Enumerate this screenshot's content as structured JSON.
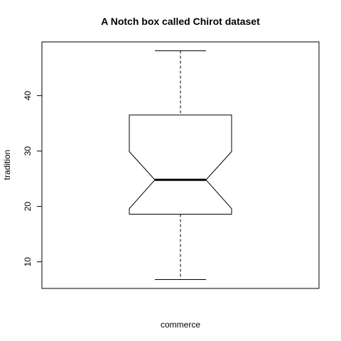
{
  "chart_data": {
    "type": "boxplot",
    "notched": true,
    "title": "A Notch box called Chirot dataset",
    "xlabel": "commerce",
    "ylabel": "tradition",
    "ylim": [
      5.2,
      49.7
    ],
    "yticks": [
      10,
      20,
      30,
      40
    ],
    "box": {
      "whisker_low": 6.8,
      "q1": 18.6,
      "notch_low": 19.6,
      "median": 24.8,
      "notch_high": 29.9,
      "q3": 36.5,
      "whisker_high": 48.1
    },
    "colors": {
      "stroke": "#000000",
      "background": "#ffffff"
    }
  }
}
